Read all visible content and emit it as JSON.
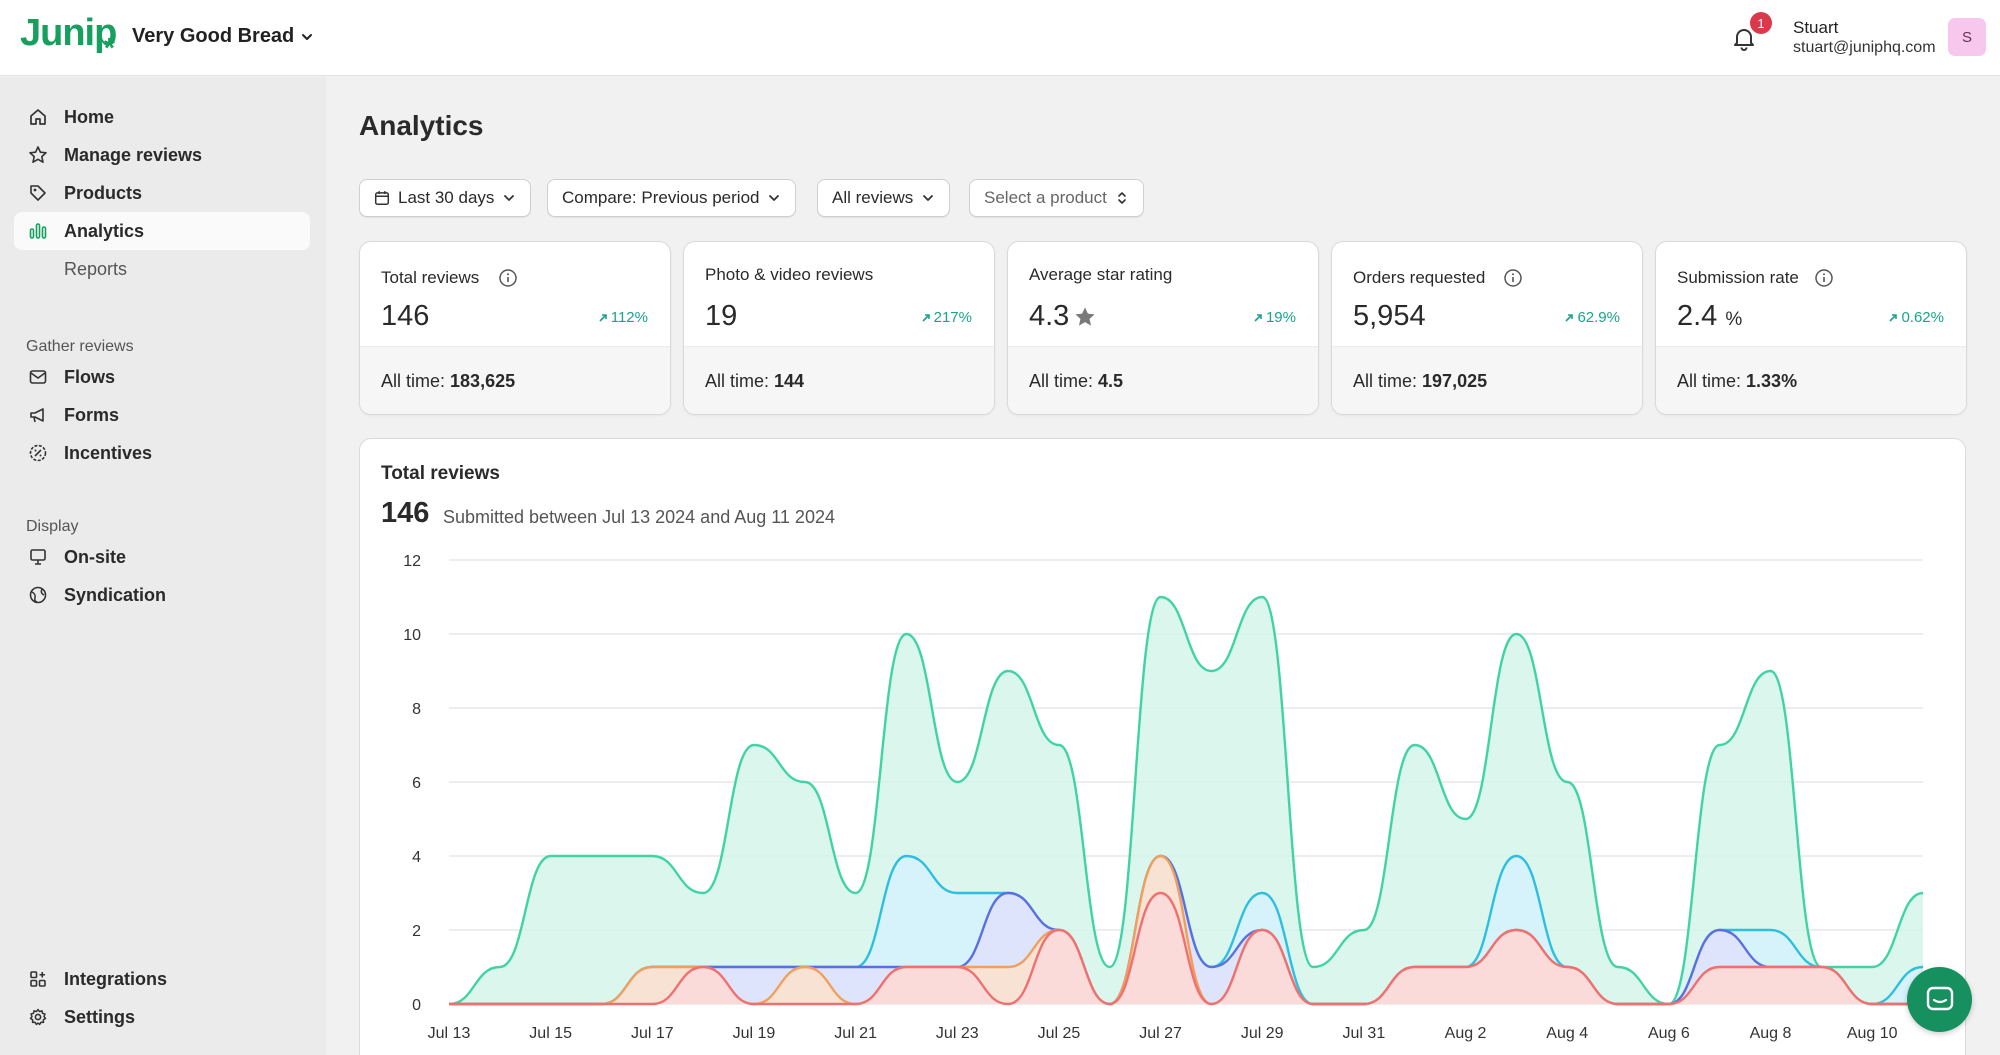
{
  "header": {
    "logo": "Junip",
    "store_name": "Very Good Bread",
    "notification_count": "1",
    "user_name": "Stuart",
    "user_email": "stuart@juniphq.com",
    "avatar_initial": "S"
  },
  "sidebar": {
    "items": [
      {
        "label": "Home",
        "icon": "home-icon"
      },
      {
        "label": "Manage reviews",
        "icon": "star-icon"
      },
      {
        "label": "Products",
        "icon": "tag-icon"
      },
      {
        "label": "Analytics",
        "icon": "bar-chart-icon"
      },
      {
        "label": "Reports",
        "icon": ""
      }
    ],
    "gather_heading": "Gather reviews",
    "gather_items": [
      {
        "label": "Flows",
        "icon": "mail-icon"
      },
      {
        "label": "Forms",
        "icon": "megaphone-icon"
      },
      {
        "label": "Incentives",
        "icon": "discount-icon"
      }
    ],
    "display_heading": "Display",
    "display_items": [
      {
        "label": "On-site",
        "icon": "monitor-icon"
      },
      {
        "label": "Syndication",
        "icon": "globe-icon"
      }
    ],
    "bottom_items": [
      {
        "label": "Integrations",
        "icon": "apps-icon"
      },
      {
        "label": "Settings",
        "icon": "gear-icon"
      }
    ]
  },
  "main": {
    "title": "Analytics",
    "filters": {
      "date_range": "Last 30 days",
      "compare": "Compare: Previous period",
      "reviews": "All reviews",
      "product_placeholder": "Select a product"
    },
    "cards": [
      {
        "title": "Total reviews",
        "value": "146",
        "unit": "",
        "change": "112%",
        "all_time_label": "All time:",
        "all_time_value": "183,625"
      },
      {
        "title": "Photo & video reviews",
        "value": "19",
        "unit": "",
        "change": "217%",
        "all_time_label": "All time:",
        "all_time_value": "144"
      },
      {
        "title": "Average star rating",
        "value": "4.3",
        "unit": "",
        "change": "19%",
        "all_time_label": "All time:",
        "all_time_value": "4.5"
      },
      {
        "title": "Orders requested",
        "value": "5,954",
        "unit": "",
        "change": "62.9%",
        "all_time_label": "All time:",
        "all_time_value": "197,025"
      },
      {
        "title": "Submission rate",
        "value": "2.4",
        "unit": "%",
        "change": "0.62%",
        "all_time_label": "All time:",
        "all_time_value": "1.33%"
      }
    ],
    "chart_card": {
      "title": "Total reviews",
      "total": "146",
      "subtitle": "Submitted between Jul 13 2024 and Aug 11 2024"
    }
  },
  "colors": {
    "brand": "#17a05d",
    "positive_change": "#1aa38d",
    "badge": "#d83a4b"
  },
  "chart_data": {
    "type": "area",
    "title": "Total reviews",
    "xlabel": "",
    "ylabel": "",
    "ylim": [
      0,
      12
    ],
    "yticks": [
      0,
      2,
      4,
      6,
      8,
      10,
      12
    ],
    "x": [
      "Jul 13",
      "Jul 14",
      "Jul 15",
      "Jul 16",
      "Jul 17",
      "Jul 18",
      "Jul 19",
      "Jul 20",
      "Jul 21",
      "Jul 22",
      "Jul 23",
      "Jul 24",
      "Jul 25",
      "Jul 26",
      "Jul 27",
      "Jul 28",
      "Jul 29",
      "Jul 30",
      "Jul 31",
      "Aug 1",
      "Aug 2",
      "Aug 3",
      "Aug 4",
      "Aug 5",
      "Aug 6",
      "Aug 7",
      "Aug 8",
      "Aug 9",
      "Aug 10",
      "Aug 11"
    ],
    "x_tick_labels": [
      "Jul 13",
      "Jul 15",
      "Jul 17",
      "Jul 19",
      "Jul 21",
      "Jul 23",
      "Jul 25",
      "Jul 27",
      "Jul 29",
      "Jul 31",
      "Aug 2",
      "Aug 4",
      "Aug 6",
      "Aug 8",
      "Aug 10"
    ],
    "grid": true,
    "series": [
      {
        "color": "#3fd3a6",
        "fill": "#d4f5ea",
        "values": [
          0,
          1,
          4,
          4,
          4,
          3,
          7,
          6,
          3,
          10,
          6,
          9,
          7,
          1,
          11,
          9,
          11,
          1,
          2,
          7,
          5,
          10,
          6,
          1,
          0,
          7,
          9,
          1,
          1,
          3
        ]
      },
      {
        "color": "#2ebfe0",
        "fill": "#d5f1fb",
        "values": [
          0,
          0,
          0,
          0,
          1,
          1,
          1,
          1,
          1,
          4,
          3,
          3,
          2,
          0,
          4,
          1,
          3,
          0,
          0,
          1,
          1,
          4,
          1,
          0,
          0,
          2,
          2,
          1,
          0,
          1
        ]
      },
      {
        "color": "#5a6fe0",
        "fill": "#dfe2fb",
        "values": [
          0,
          0,
          0,
          0,
          1,
          1,
          1,
          1,
          1,
          1,
          1,
          3,
          2,
          0,
          4,
          1,
          2,
          0,
          0,
          1,
          1,
          2,
          1,
          0,
          0,
          2,
          1,
          1,
          0,
          0
        ]
      },
      {
        "color": "#f0a05c",
        "fill": "#fde2cc",
        "values": [
          0,
          0,
          0,
          0,
          1,
          1,
          0,
          1,
          0,
          1,
          1,
          1,
          2,
          0,
          4,
          0,
          2,
          0,
          0,
          1,
          1,
          2,
          1,
          0,
          0,
          1,
          1,
          1,
          0,
          0
        ]
      },
      {
        "color": "#f07070",
        "fill": "#fbd9d9",
        "values": [
          0,
          0,
          0,
          0,
          0,
          1,
          0,
          0,
          0,
          1,
          1,
          0,
          2,
          0,
          3,
          0,
          2,
          0,
          0,
          1,
          1,
          2,
          1,
          0,
          0,
          1,
          1,
          1,
          0,
          0
        ]
      }
    ]
  }
}
